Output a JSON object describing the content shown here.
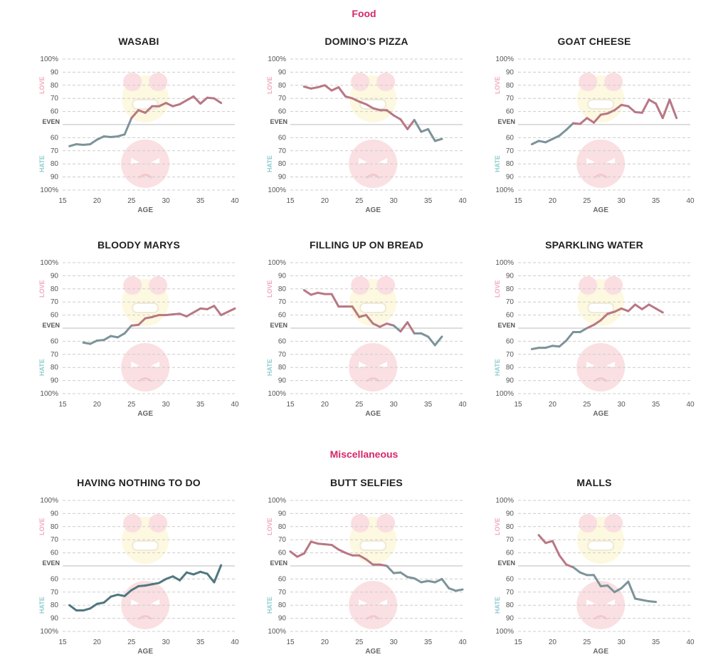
{
  "sections": [
    {
      "title": "Food"
    },
    {
      "title": "Miscellaneous"
    }
  ],
  "axis": {
    "love_label": "LOVE",
    "hate_label": "HATE",
    "even_label": "EVEN",
    "xlabel": "AGE",
    "y_ticks_love": [
      "100%",
      "90",
      "80",
      "70",
      "60"
    ],
    "y_ticks_hate": [
      "60",
      "70",
      "80",
      "90",
      "100%"
    ],
    "x_ticks": [
      15,
      20,
      25,
      30,
      35,
      40
    ]
  },
  "colors": {
    "love_line": "#b87784",
    "hate_line": "#7c9399",
    "hate_dark_line": "#4f7780",
    "love_text": "#f0aabb",
    "hate_text": "#8fcccf",
    "section_title": "#d6266a",
    "grid": "#cccccc"
  },
  "chart_data": [
    {
      "type": "line",
      "title": "WASABI",
      "xlabel": "AGE",
      "xlim": [
        15,
        40
      ],
      "ylim": [
        -100,
        100
      ],
      "x": [
        16,
        17,
        18,
        19,
        20,
        21,
        22,
        23,
        24,
        25,
        26,
        27,
        28,
        29,
        30,
        31,
        32,
        33,
        34,
        35,
        36,
        37,
        38,
        39
      ],
      "y": [
        -33,
        -30,
        -31,
        -30,
        -23,
        -18,
        -19,
        -18,
        -15,
        10,
        22,
        18,
        28,
        28,
        33,
        28,
        31,
        37,
        43,
        32,
        41,
        40,
        33,
        null
      ]
    },
    {
      "type": "line",
      "title": "DOMINO'S PIZZA",
      "xlabel": "AGE",
      "xlim": [
        15,
        40
      ],
      "ylim": [
        -100,
        100
      ],
      "x": [
        17,
        18,
        19,
        20,
        21,
        22,
        23,
        24,
        25,
        26,
        27,
        28,
        29,
        30,
        31,
        32,
        33,
        34,
        35,
        36,
        37
      ],
      "y": [
        58,
        55,
        57,
        60,
        52,
        57,
        43,
        40,
        35,
        31,
        25,
        22,
        22,
        14,
        8,
        -7,
        7,
        -11,
        -7,
        -25,
        -22
      ]
    },
    {
      "type": "line",
      "title": "GOAT CHEESE",
      "xlabel": "AGE",
      "xlim": [
        15,
        40
      ],
      "ylim": [
        -100,
        100
      ],
      "x": [
        17,
        18,
        19,
        20,
        21,
        22,
        23,
        24,
        25,
        26,
        27,
        28,
        29,
        30,
        31,
        32,
        33,
        34,
        35,
        36,
        37,
        38
      ],
      "y": [
        -30,
        -25,
        -27,
        -22,
        -17,
        -8,
        2,
        1,
        10,
        3,
        15,
        17,
        22,
        30,
        28,
        19,
        18,
        38,
        32,
        10,
        38,
        10
      ]
    },
    {
      "type": "line",
      "title": "BLOODY MARYS",
      "xlabel": "AGE",
      "xlim": [
        15,
        40
      ],
      "ylim": [
        -100,
        100
      ],
      "x": [
        18,
        19,
        20,
        21,
        22,
        23,
        24,
        25,
        26,
        27,
        28,
        29,
        30,
        31,
        32,
        33,
        34,
        35,
        36,
        37,
        38,
        39,
        40
      ],
      "y": [
        -22,
        -24,
        -19,
        -18,
        -12,
        -14,
        -8,
        4,
        5,
        15,
        17,
        20,
        20,
        21,
        22,
        18,
        24,
        30,
        29,
        34,
        20,
        25,
        30
      ]
    },
    {
      "type": "line",
      "title": "FILLING UP ON BREAD",
      "xlabel": "AGE",
      "xlim": [
        15,
        40
      ],
      "ylim": [
        -100,
        100
      ],
      "x": [
        17,
        18,
        19,
        20,
        21,
        22,
        23,
        24,
        25,
        26,
        27,
        28,
        29,
        30,
        31,
        32,
        33,
        34,
        35,
        36,
        37
      ],
      "y": [
        58,
        51,
        54,
        52,
        52,
        33,
        33,
        33,
        17,
        20,
        7,
        2,
        7,
        4,
        -5,
        9,
        -8,
        -8,
        -13,
        -26,
        -13
      ]
    },
    {
      "type": "line",
      "title": "SPARKLING WATER",
      "xlabel": "AGE",
      "xlim": [
        15,
        40
      ],
      "ylim": [
        -100,
        100
      ],
      "x": [
        17,
        18,
        19,
        20,
        21,
        22,
        23,
        24,
        25,
        26,
        27,
        28,
        29,
        30,
        31,
        32,
        33,
        34,
        35,
        36
      ],
      "y": [
        -32,
        -30,
        -30,
        -27,
        -28,
        -19,
        -6,
        -6,
        0,
        5,
        12,
        22,
        25,
        30,
        26,
        36,
        29,
        36,
        30,
        24
      ]
    },
    {
      "type": "line",
      "title": "HAVING NOTHING TO DO",
      "xlabel": "AGE",
      "xlim": [
        15,
        40
      ],
      "ylim": [
        -100,
        100
      ],
      "x": [
        16,
        17,
        18,
        19,
        20,
        21,
        22,
        23,
        24,
        25,
        26,
        27,
        28,
        29,
        30,
        31,
        32,
        33,
        34,
        35,
        36,
        37,
        38
      ],
      "y": [
        -60,
        -68,
        -68,
        -65,
        -58,
        -56,
        -47,
        -44,
        -46,
        -37,
        -31,
        -30,
        -28,
        -26,
        -20,
        -16,
        -22,
        -10,
        -13,
        -9,
        -12,
        -25,
        1
      ]
    },
    {
      "type": "line",
      "title": "BUTT SELFIES",
      "xlabel": "AGE",
      "xlim": [
        15,
        40
      ],
      "ylim": [
        -100,
        100
      ],
      "x": [
        15,
        16,
        17,
        18,
        19,
        20,
        21,
        22,
        23,
        24,
        25,
        26,
        27,
        28,
        29,
        30,
        31,
        32,
        33,
        34,
        35,
        36,
        37,
        38,
        39,
        40
      ],
      "y": [
        22,
        14,
        19,
        37,
        34,
        33,
        32,
        25,
        20,
        16,
        16,
        10,
        2,
        2,
        0,
        -11,
        -10,
        -17,
        -19,
        -25,
        -23,
        -25,
        -20,
        -34,
        -38,
        -36
      ]
    },
    {
      "type": "line",
      "title": "MALLS",
      "xlabel": "AGE",
      "xlim": [
        15,
        40
      ],
      "ylim": [
        -100,
        100
      ],
      "x": [
        18,
        19,
        20,
        21,
        22,
        23,
        24,
        25,
        26,
        27,
        28,
        29,
        30,
        31,
        32,
        33,
        34,
        35
      ],
      "y": [
        47,
        35,
        38,
        16,
        2,
        -2,
        -10,
        -14,
        -14,
        -31,
        -30,
        -40,
        -34,
        -24,
        -50,
        -52,
        -54,
        -55
      ]
    }
  ]
}
